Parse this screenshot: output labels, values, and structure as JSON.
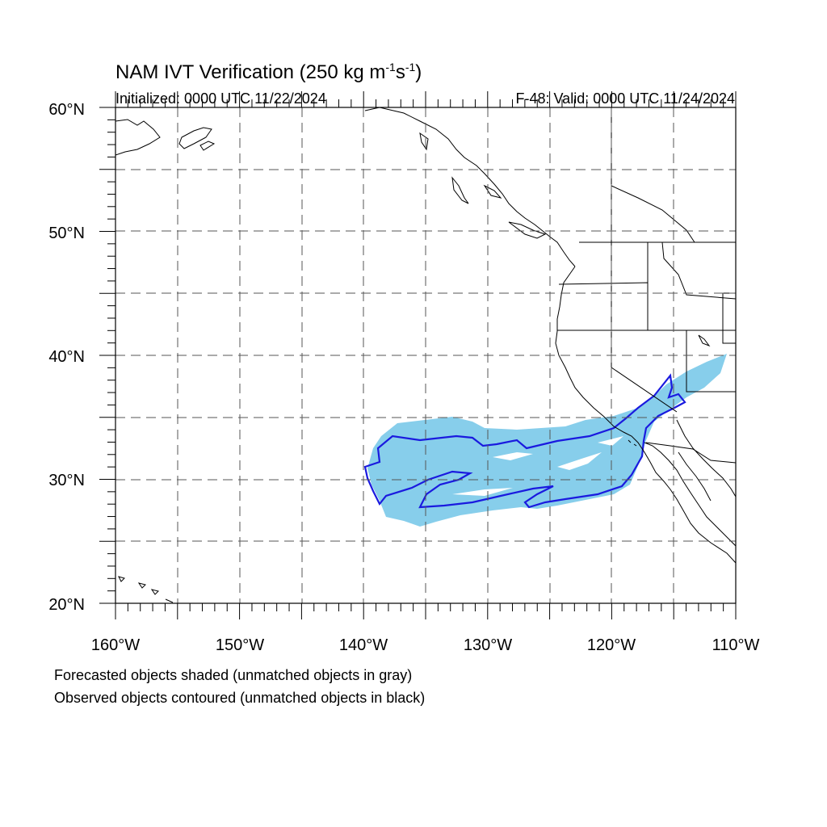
{
  "title": "NAM IVT Verification (250 kg m",
  "title_sup1": "-1",
  "title_mid": "s",
  "title_sup2": "-1",
  "title_end": ")",
  "initialized": "Initialized: 0000 UTC 11/22/2024",
  "valid": "F-48: Valid: 0000 UTC 11/24/2024",
  "lat_labels": [
    "60°N",
    "50°N",
    "40°N",
    "30°N",
    "20°N"
  ],
  "lon_labels": [
    "160°W",
    "150°W",
    "140°W",
    "130°W",
    "120°W",
    "110°W"
  ],
  "notes": {
    "forecast": "Forecasted objects shaded (unmatched objects in gray)",
    "observed": "Observed objects contoured (unmatched objects in black)"
  },
  "map": {
    "lon_range": [
      -160,
      -110
    ],
    "lat_range": [
      20,
      60
    ],
    "grid_step_deg": 5,
    "projection": "cylindrical equidistant",
    "forecast_object_color": "#87ceeb",
    "observed_object_color": "#1a1adf",
    "coastline_color": "#000000",
    "grid_style": "dashed"
  }
}
